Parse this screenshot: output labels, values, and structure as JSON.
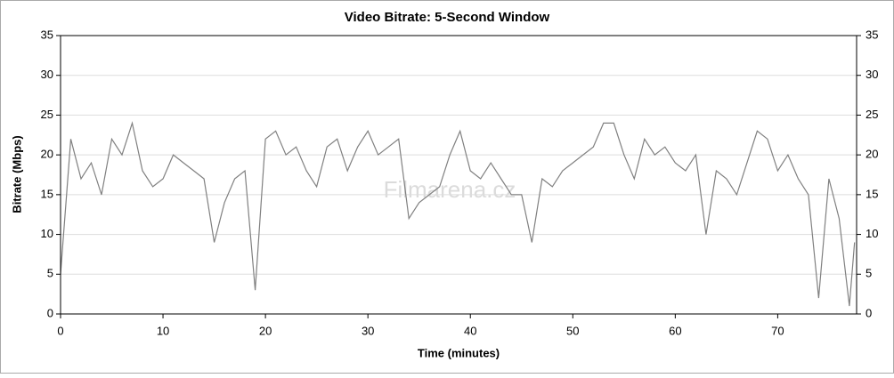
{
  "chart_data": {
    "type": "line",
    "title": "Video Bitrate: 5-Second Window",
    "x_label": "Time (minutes)",
    "y_label": "Bitrate (Mbps)",
    "watermark": "Filmarena.cz",
    "x": [
      0,
      1,
      2,
      3,
      4,
      5,
      6,
      7,
      8,
      9,
      10,
      11,
      12,
      13,
      14,
      15,
      16,
      17,
      18,
      19,
      20,
      21,
      22,
      23,
      24,
      25,
      26,
      27,
      28,
      29,
      30,
      31,
      32,
      33,
      34,
      35,
      36,
      37,
      38,
      39,
      40,
      41,
      42,
      43,
      44,
      45,
      46,
      47,
      48,
      49,
      50,
      51,
      52,
      53,
      54,
      55,
      56,
      57,
      58,
      59,
      60,
      61,
      62,
      63,
      64,
      65,
      66,
      67,
      68,
      69,
      70,
      71,
      72,
      73,
      74,
      75,
      76,
      77,
      77.5
    ],
    "values": [
      5,
      22,
      17,
      19,
      15,
      22,
      20,
      24,
      18,
      16,
      17,
      20,
      19,
      18,
      17,
      9,
      14,
      17,
      18,
      3,
      22,
      23,
      20,
      21,
      18,
      16,
      21,
      22,
      18,
      21,
      23,
      20,
      21,
      22,
      12,
      14,
      15,
      16,
      20,
      23,
      18,
      17,
      19,
      17,
      15,
      15,
      9,
      17,
      16,
      18,
      19,
      20,
      21,
      24,
      24,
      20,
      17,
      22,
      20,
      21,
      19,
      18,
      20,
      10,
      18,
      17,
      15,
      19,
      23,
      22,
      18,
      20,
      17,
      15,
      2,
      17,
      12,
      1,
      9
    ],
    "color": "#808080",
    "xlim": [
      0,
      77.7
    ],
    "xticks": [
      0,
      10,
      20,
      30,
      40,
      50,
      60,
      70
    ],
    "ylim": [
      0,
      35
    ],
    "yticks": [
      0,
      5,
      10,
      15,
      20,
      25,
      30,
      35
    ],
    "grid": true
  }
}
